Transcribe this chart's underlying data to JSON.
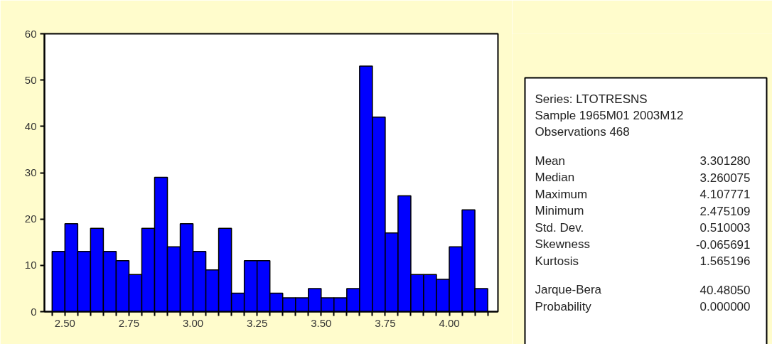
{
  "chart_data": {
    "type": "histogram",
    "bins": [
      2.45,
      2.5,
      2.55,
      2.6,
      2.65,
      2.7,
      2.75,
      2.8,
      2.85,
      2.9,
      2.95,
      3.0,
      3.05,
      3.1,
      3.15,
      3.2,
      3.25,
      3.3,
      3.35,
      3.4,
      3.45,
      3.5,
      3.55,
      3.6,
      3.65,
      3.7,
      3.75,
      3.8,
      3.85,
      3.9,
      3.95,
      4.0,
      4.05,
      4.1,
      4.15
    ],
    "values": [
      13,
      19,
      13,
      18,
      13,
      11,
      8,
      18,
      29,
      14,
      19,
      13,
      9,
      18,
      4,
      11,
      11,
      4,
      3,
      3,
      5,
      3,
      3,
      5,
      53,
      42,
      17,
      25,
      8,
      8,
      7,
      14,
      22,
      5
    ],
    "color": "#0000ff",
    "xlim": [
      2.42,
      4.19
    ],
    "xticks": [
      {
        "value": 2.45,
        "label": null
      },
      {
        "value": 2.5,
        "label": "2.50"
      },
      {
        "value": 2.55,
        "label": null
      },
      {
        "value": 2.6,
        "label": null
      },
      {
        "value": 2.65,
        "label": null
      },
      {
        "value": 2.7,
        "label": null
      },
      {
        "value": 2.75,
        "label": "2.75"
      },
      {
        "value": 2.8,
        "label": null
      },
      {
        "value": 2.85,
        "label": null
      },
      {
        "value": 2.9,
        "label": null
      },
      {
        "value": 2.95,
        "label": null
      },
      {
        "value": 3.0,
        "label": "3.00"
      },
      {
        "value": 3.05,
        "label": null
      },
      {
        "value": 3.1,
        "label": null
      },
      {
        "value": 3.15,
        "label": null
      },
      {
        "value": 3.2,
        "label": null
      },
      {
        "value": 3.25,
        "label": "3.25"
      },
      {
        "value": 3.3,
        "label": null
      },
      {
        "value": 3.35,
        "label": null
      },
      {
        "value": 3.4,
        "label": null
      },
      {
        "value": 3.45,
        "label": null
      },
      {
        "value": 3.5,
        "label": "3.50"
      },
      {
        "value": 3.55,
        "label": null
      },
      {
        "value": 3.6,
        "label": null
      },
      {
        "value": 3.65,
        "label": null
      },
      {
        "value": 3.7,
        "label": null
      },
      {
        "value": 3.75,
        "label": "3.75"
      },
      {
        "value": 3.8,
        "label": null
      },
      {
        "value": 3.85,
        "label": null
      },
      {
        "value": 3.9,
        "label": null
      },
      {
        "value": 3.95,
        "label": null
      },
      {
        "value": 4.0,
        "label": "4.00"
      },
      {
        "value": 4.05,
        "label": null
      },
      {
        "value": 4.1,
        "label": null
      },
      {
        "value": 4.15,
        "label": null
      }
    ],
    "ylim": [
      0,
      60
    ],
    "yticks": [
      0,
      10,
      20,
      30,
      40,
      50,
      60
    ],
    "grid": false,
    "annotations": [
      "Series: LTOTRESNS",
      "Sample 1965M01 2003M12",
      "Observations 468",
      "Mean",
      "3.301280",
      "Median",
      "3.260075",
      "Maximum",
      "4.107771",
      "Minimum",
      "2.475109",
      "Std. Dev.",
      "0.510003",
      "Skewness",
      "-0.065691",
      "Kurtosis",
      "1.565196",
      "Jarque-Bera",
      "40.48050",
      "Probability",
      "0.000000"
    ]
  }
}
